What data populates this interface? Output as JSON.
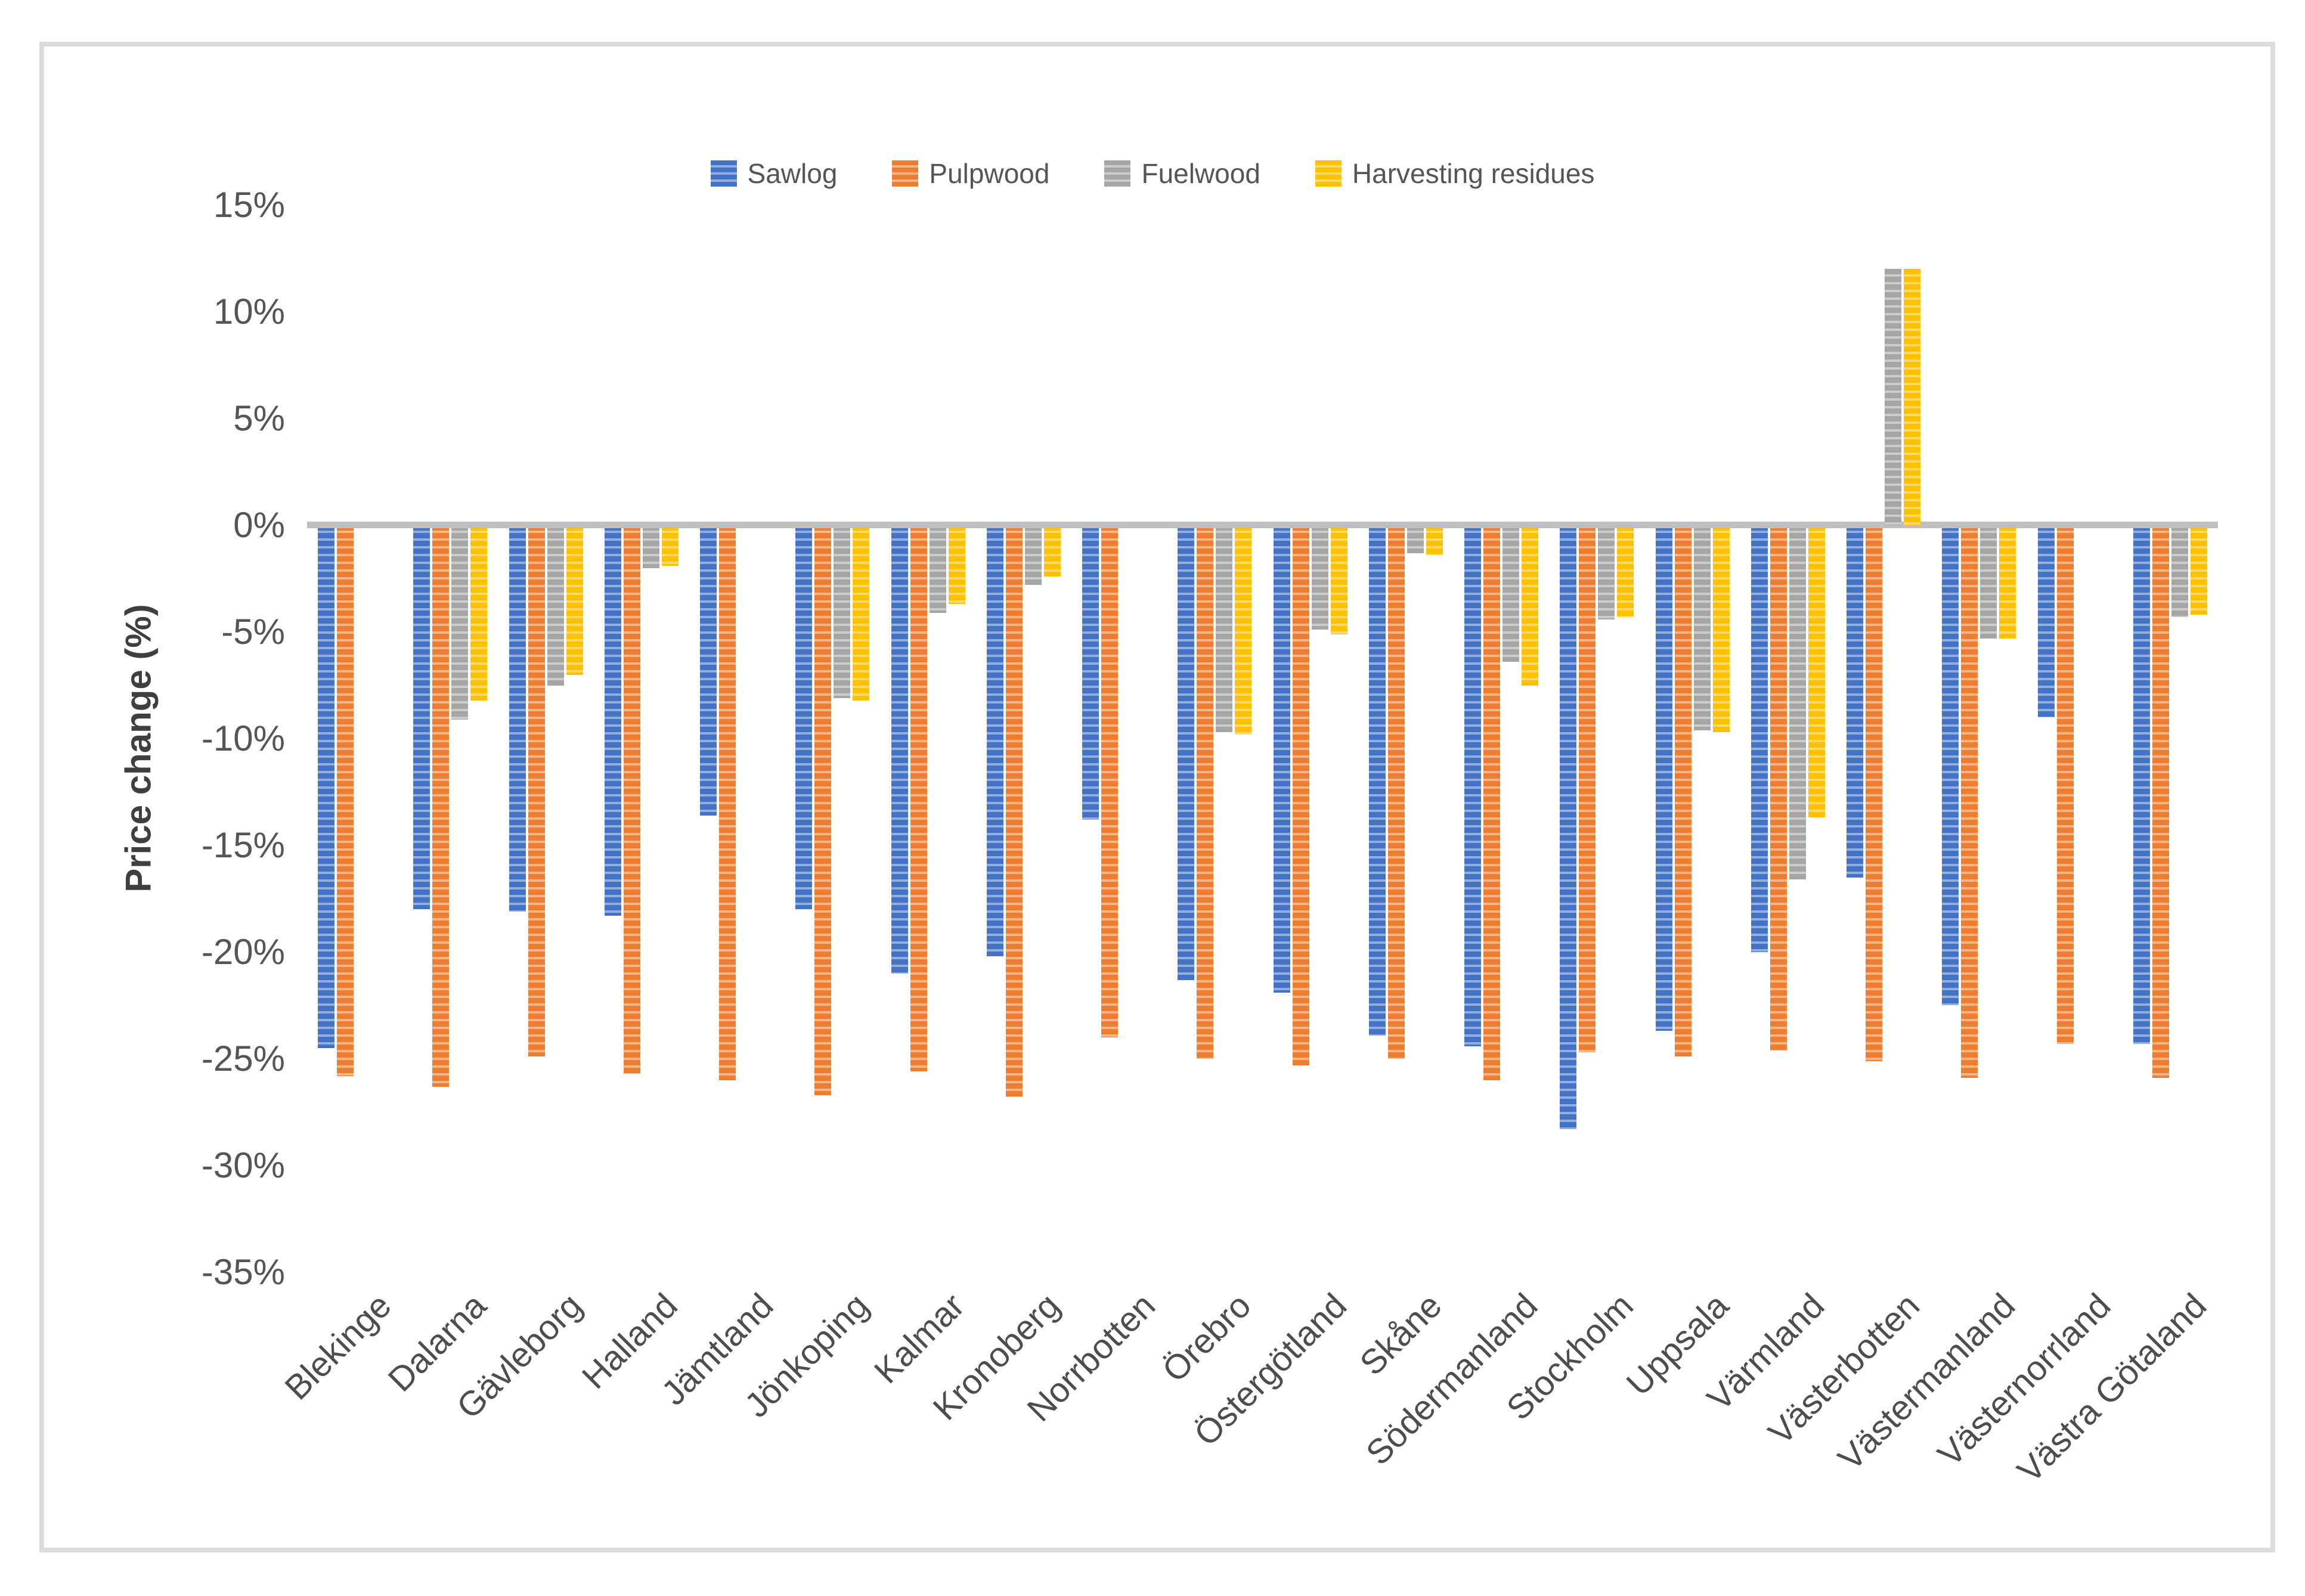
{
  "y_axis": {
    "title": "Price change (%)",
    "ticks": [
      "15%",
      "10%",
      "5%",
      "0%",
      "-5%",
      "-10%",
      "-15%",
      "-20%",
      "-25%",
      "-30%",
      "-35%"
    ],
    "tick_values": [
      15,
      10,
      5,
      0,
      -5,
      -10,
      -15,
      -20,
      -25,
      -30,
      -35
    ]
  },
  "chart_data": {
    "type": "bar",
    "title": "",
    "xlabel": "",
    "ylabel": "Price change (%)",
    "ylim": [
      -35,
      15
    ],
    "grid": false,
    "legend_position": "top",
    "bar_pattern": "horizontal-stripes",
    "axis_line_color": "#BFBFBF",
    "categories": [
      "Blekinge",
      "Dalarna",
      "Gävleborg",
      "Halland",
      "Jämtland",
      "Jönkoping",
      "Kalmar",
      "Kronoberg",
      "Norrbotten",
      "Örebro",
      "Östergötland",
      "Skåne",
      "Södermanland",
      "Stockholm",
      "Uppsala",
      "Värmland",
      "Västerbotten",
      "Västermanland",
      "Västernorrland",
      "Västra Götaland"
    ],
    "series": [
      {
        "name": "Sawlog",
        "color": "#4472C4",
        "values": [
          -24.5,
          -18.0,
          -18.1,
          -18.3,
          -13.6,
          -18.0,
          -21.0,
          -20.2,
          -13.8,
          -21.3,
          -21.9,
          -23.9,
          -24.4,
          -28.3,
          -23.7,
          -20.0,
          -16.5,
          -22.5,
          -9.0,
          -24.3
        ]
      },
      {
        "name": "Pulpwood",
        "color": "#ED7D31",
        "values": [
          -25.8,
          -26.3,
          -24.9,
          -25.7,
          -26.0,
          -26.7,
          -25.6,
          -26.8,
          -24.0,
          -25.0,
          -25.3,
          -25.0,
          -26.0,
          -24.7,
          -24.9,
          -24.6,
          -25.1,
          -25.9,
          -24.3,
          -25.9
        ]
      },
      {
        "name": "Fuelwood",
        "color": "#A5A5A5",
        "values": [
          null,
          -9.1,
          -7.5,
          -2.0,
          null,
          -8.1,
          -4.1,
          -2.8,
          null,
          -9.7,
          -4.9,
          -1.3,
          -6.4,
          -4.4,
          -9.6,
          -16.6,
          12.0,
          -5.3,
          null,
          -4.3
        ]
      },
      {
        "name": "Harvesting residues",
        "color": "#FFC000",
        "values": [
          null,
          -8.2,
          -7.0,
          -1.9,
          null,
          -8.2,
          -3.7,
          -2.4,
          null,
          -9.8,
          -5.1,
          -1.4,
          -7.5,
          -4.3,
          -9.7,
          -13.7,
          12.0,
          -5.3,
          null,
          -4.2
        ]
      }
    ]
  }
}
